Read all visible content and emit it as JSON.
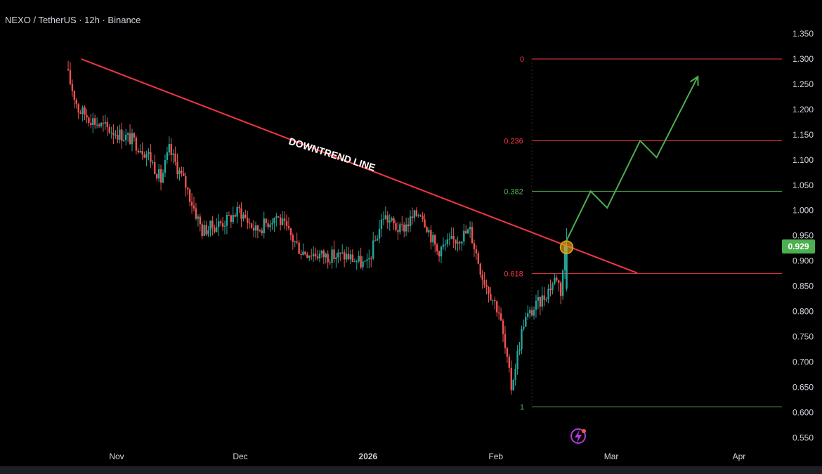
{
  "header": {
    "title": "NEXO / TetherUS · 12h · Binance"
  },
  "price_tag": {
    "value": "0.929",
    "color": "#4caf50"
  },
  "colors": {
    "up": "#26a69a",
    "down": "#ef5350",
    "trendline": "#f23645",
    "projection": "#4caf50",
    "fib_red": "#f23645",
    "fib_green": "#4caf50",
    "marker": "#e6a817"
  },
  "chart_data": {
    "type": "candlestick",
    "title": "NEXO / TetherUS · 12h · Binance",
    "y_ticks": [
      "1.350",
      "1.300",
      "1.250",
      "1.200",
      "1.150",
      "1.100",
      "1.050",
      "1.000",
      "0.950",
      "0.900",
      "0.850",
      "0.800",
      "0.750",
      "0.700",
      "0.650",
      "0.600",
      "0.550"
    ],
    "ylim": [
      0.55,
      1.35
    ],
    "x_ticks": [
      "Nov",
      "Dec",
      "2026",
      "Feb",
      "Mar",
      "Apr"
    ],
    "x_tick_bold": [
      "2026"
    ],
    "last_price": 0.929,
    "fib_levels": [
      {
        "label": "0",
        "value": 1.3,
        "color": "red"
      },
      {
        "label": "0.236",
        "value": 1.138,
        "color": "red"
      },
      {
        "label": "0.382",
        "value": 1.038,
        "color": "green"
      },
      {
        "label": "0.618",
        "value": 0.875,
        "color": "red"
      },
      {
        "label": "1",
        "value": 0.611,
        "color": "green"
      }
    ],
    "annotations": [
      {
        "text": "DOWNTREND LINE",
        "type": "trendline-label"
      }
    ],
    "trendline": {
      "from": {
        "date": "Oct 20",
        "price": 1.3
      },
      "to": {
        "date": "Mar 7",
        "price": 0.876
      }
    },
    "breakout_marker": {
      "date": "Feb 18",
      "price": 0.927
    },
    "projected_path": [
      {
        "date": "Feb 18",
        "price": 0.938
      },
      {
        "date": "Feb 24",
        "price": 1.038
      },
      {
        "date": "Feb 28",
        "price": 1.005
      },
      {
        "date": "Mar 8",
        "price": 1.138
      },
      {
        "date": "Mar 12",
        "price": 1.105
      },
      {
        "date": "Mar 22",
        "price": 1.265
      }
    ],
    "price_path": [
      {
        "date": "Oct 20",
        "price": 1.28
      },
      {
        "date": "Oct 23",
        "price": 1.2
      },
      {
        "date": "Oct 28",
        "price": 1.17
      },
      {
        "date": "Nov 5",
        "price": 1.14
      },
      {
        "date": "Nov 9",
        "price": 1.11
      },
      {
        "date": "Nov 12",
        "price": 1.06
      },
      {
        "date": "Nov 14",
        "price": 1.12
      },
      {
        "date": "Nov 18",
        "price": 1.05
      },
      {
        "date": "Nov 22",
        "price": 0.96
      },
      {
        "date": "Nov 28",
        "price": 0.98
      },
      {
        "date": "Dec 1",
        "price": 1.0
      },
      {
        "date": "Dec 5",
        "price": 0.96
      },
      {
        "date": "Dec 10",
        "price": 0.99
      },
      {
        "date": "Dec 16",
        "price": 0.92
      },
      {
        "date": "Dec 22",
        "price": 0.91
      },
      {
        "date": "Dec 27",
        "price": 0.91
      },
      {
        "date": "Jan 1",
        "price": 0.89
      },
      {
        "date": "Jan 5",
        "price": 0.99
      },
      {
        "date": "Jan 9",
        "price": 0.96
      },
      {
        "date": "Jan 14",
        "price": 1.0
      },
      {
        "date": "Jan 18",
        "price": 0.92
      },
      {
        "date": "Jan 22",
        "price": 0.94
      },
      {
        "date": "Jan 26",
        "price": 0.96
      },
      {
        "date": "Jan 29",
        "price": 0.87
      },
      {
        "date": "Feb 2",
        "price": 0.8
      },
      {
        "date": "Feb 5",
        "price": 0.65
      },
      {
        "date": "Feb 8",
        "price": 0.78
      },
      {
        "date": "Feb 13",
        "price": 0.83
      },
      {
        "date": "Feb 16",
        "price": 0.87
      },
      {
        "date": "Feb 17",
        "price": 0.84
      },
      {
        "date": "Feb 18",
        "price": 0.929
      }
    ]
  }
}
